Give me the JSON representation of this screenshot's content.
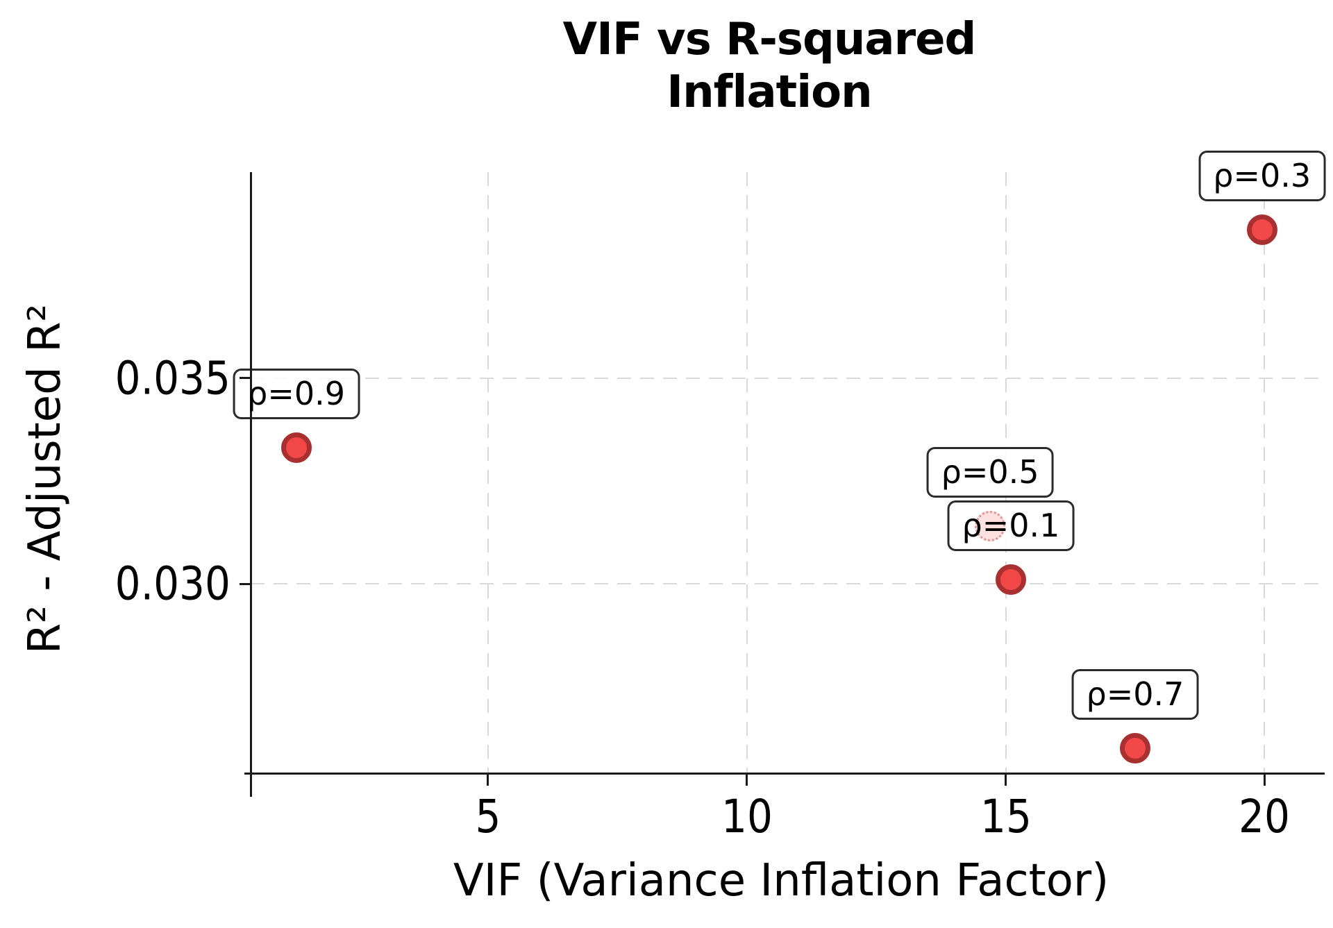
{
  "chart_data": {
    "type": "scatter",
    "title": "VIF vs R-squared\nInflation",
    "xlabel": "VIF (Variance Inflation Factor)",
    "ylabel": "R² - Adjusted R²",
    "xlim": [
      0.42,
      21.12
    ],
    "ylim": [
      0.0254,
      0.04
    ],
    "xticks": [
      5,
      10,
      15,
      20
    ],
    "xtick_labels": [
      "5",
      "10",
      "15",
      "20"
    ],
    "yticks": [
      0.03,
      0.035
    ],
    "ytick_labels": [
      "0.030",
      "0.035"
    ],
    "grid": "dashed-both-axes",
    "legend": "none",
    "points": [
      {
        "label": "ρ=0.9",
        "rho": 0.9,
        "vif": 1.3,
        "r2_inflation": 0.0333,
        "style": "solid"
      },
      {
        "label": "ρ=0.5",
        "rho": 0.5,
        "vif": 14.7,
        "r2_inflation": 0.0314,
        "style": "faded"
      },
      {
        "label": "ρ=0.1",
        "rho": 0.1,
        "vif": 15.1,
        "r2_inflation": 0.0301,
        "style": "solid"
      },
      {
        "label": "ρ=0.7",
        "rho": 0.7,
        "vif": 17.5,
        "r2_inflation": 0.026,
        "style": "solid"
      },
      {
        "label": "ρ=0.3",
        "rho": 0.3,
        "vif": 19.95,
        "r2_inflation": 0.0386,
        "style": "solid"
      }
    ],
    "colors": {
      "marker_fill": "#f34848",
      "marker_edge": "#a93030",
      "faded_marker_fill": "rgba(242,70,70,0.16)",
      "faded_marker_edge": "rgba(178,60,60,0.45)",
      "gridline": "#d9d9d9",
      "spine": "#1a1a1a",
      "annotation_border": "#2b2b2b",
      "annotation_background": "rgba(255,255,255,0.85)",
      "text": "#000000"
    }
  }
}
